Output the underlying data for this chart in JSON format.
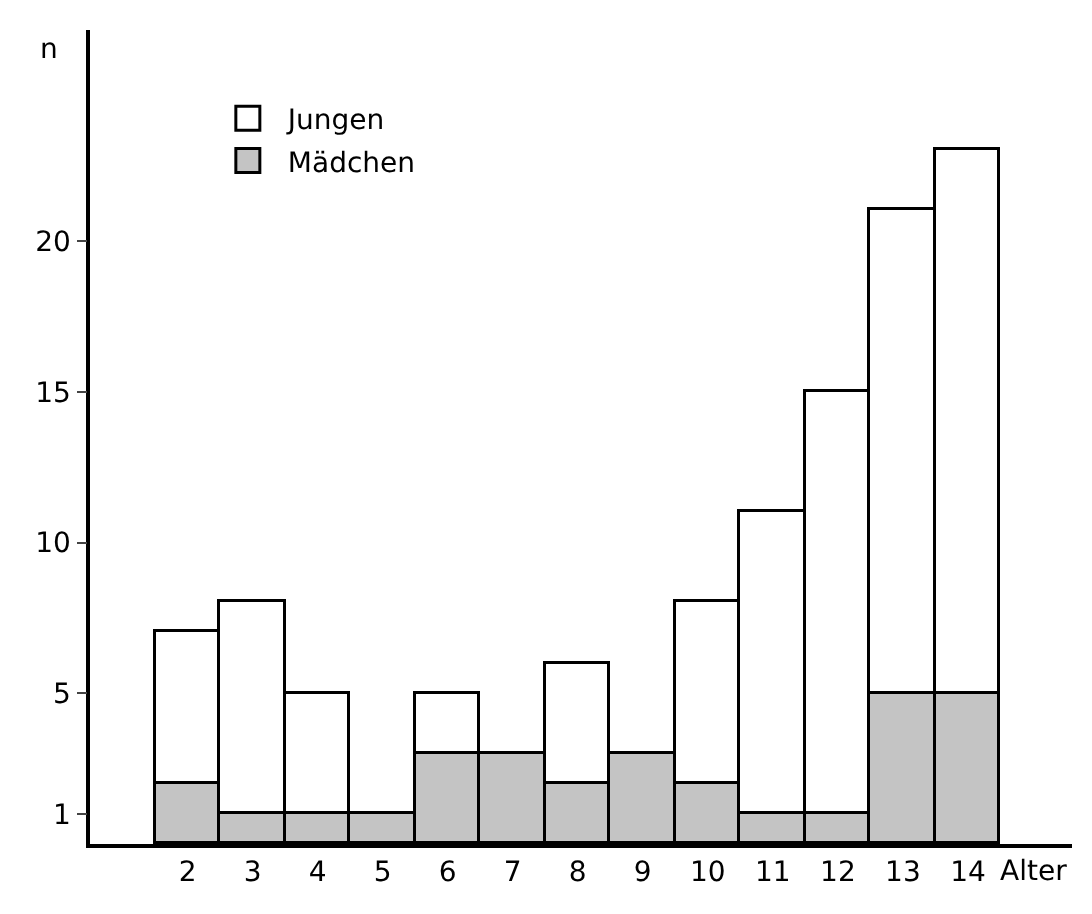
{
  "chart_data": {
    "type": "bar",
    "stacked": true,
    "xlabel": "Alter",
    "ylabel": "n",
    "categories": [
      "2",
      "3",
      "4",
      "5",
      "6",
      "7",
      "8",
      "9",
      "10",
      "11",
      "12",
      "13",
      "14"
    ],
    "series": [
      {
        "name": "Mädchen",
        "color": "#c4c4c4",
        "values": [
          2,
          1,
          1,
          1,
          3,
          3,
          2,
          3,
          2,
          1,
          1,
          5,
          5
        ]
      },
      {
        "name": "Jungen",
        "color": "#ffffff",
        "values": [
          5,
          7,
          4,
          0,
          2,
          0,
          4,
          0,
          6,
          10,
          14,
          16,
          18
        ]
      }
    ],
    "ylim": [
      0,
      27
    ],
    "yticks": [
      1,
      5,
      10,
      15,
      20
    ],
    "legend": "top left"
  }
}
